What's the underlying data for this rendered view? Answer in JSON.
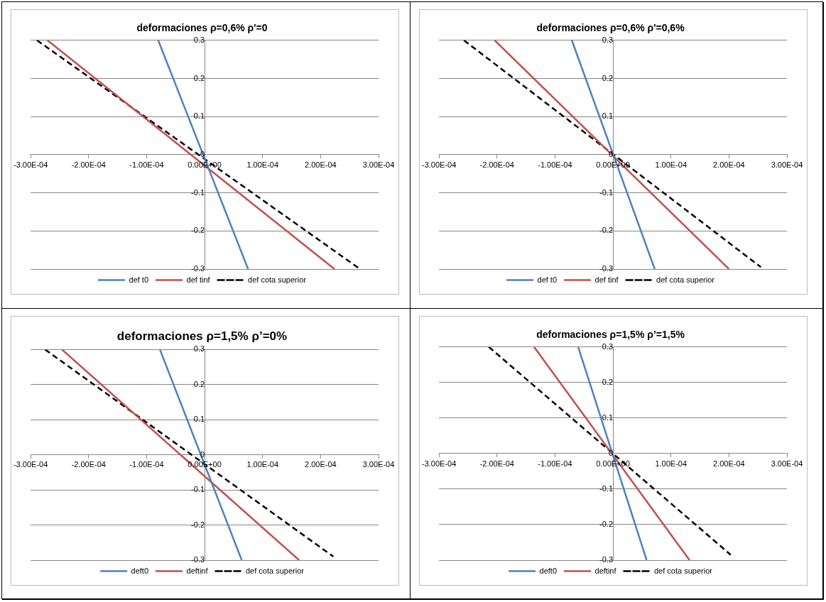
{
  "chart_data": [
    {
      "type": "line",
      "title": "deformaciones ρ=0,6% ρ'=0",
      "marker": "none",
      "grid": "y",
      "legend": "bottom",
      "xlim": [
        -0.0003,
        0.0003
      ],
      "ylim": [
        -0.3,
        0.3
      ],
      "xticks": [
        {
          "value": -0.0003,
          "label": "-3.00E-04"
        },
        {
          "value": -0.0002,
          "label": "-2.00E-04"
        },
        {
          "value": -0.0001,
          "label": "-1.00E-04"
        },
        {
          "value": 0,
          "label": "0.00E+00"
        },
        {
          "value": 0.0001,
          "label": "1.00E-04"
        },
        {
          "value": 0.0002,
          "label": "2.00E-04"
        },
        {
          "value": 0.0003,
          "label": "3.00E-04"
        }
      ],
      "yticks": [
        -0.3,
        -0.2,
        -0.1,
        0,
        0.1,
        0.2,
        0.3
      ],
      "series": [
        {
          "name": "def t0",
          "color": "#4f81bd",
          "line_style": "solid",
          "x": [
            -8e-05,
            7.5e-05
          ],
          "values": [
            0.3,
            -0.3
          ]
        },
        {
          "name": "def tinf",
          "color": "#c0504d",
          "line_style": "solid",
          "x": [
            -0.000271,
            0.000224
          ],
          "values": [
            0.3,
            -0.3
          ]
        },
        {
          "name": "def cota superior",
          "color": "#000000",
          "line_style": "dashed",
          "x": [
            -0.000289,
            0.000268
          ],
          "values": [
            0.3,
            -0.3
          ]
        }
      ]
    },
    {
      "type": "line",
      "title": "deformaciones ρ=0,6% ρ'=0,6%",
      "marker": "none",
      "grid": "y",
      "legend": "bottom",
      "xlim": [
        -0.0003,
        0.0003
      ],
      "ylim": [
        -0.3,
        0.3
      ],
      "xticks": [
        {
          "value": -0.0003,
          "label": "-3.00E-04"
        },
        {
          "value": -0.0002,
          "label": "-2.00E-04"
        },
        {
          "value": -0.0001,
          "label": "-1.00E-04"
        },
        {
          "value": 0,
          "label": "0.00E+00"
        },
        {
          "value": 0.0001,
          "label": "1.00E-04"
        },
        {
          "value": 0.0002,
          "label": "2.00E-04"
        },
        {
          "value": 0.0003,
          "label": "3.00E-04"
        }
      ],
      "yticks": [
        -0.3,
        -0.2,
        -0.1,
        0,
        0.1,
        0.2,
        0.3
      ],
      "series": [
        {
          "name": "def t0",
          "color": "#4f81bd",
          "line_style": "solid",
          "x": [
            -7.1e-05,
            7.2e-05
          ],
          "values": [
            0.3,
            -0.3
          ]
        },
        {
          "name": "def tinf",
          "color": "#c0504d",
          "line_style": "solid",
          "x": [
            -0.000204,
            0.0002
          ],
          "values": [
            0.3,
            -0.3
          ]
        },
        {
          "name": "def cota superior",
          "color": "#000000",
          "line_style": "dashed",
          "x": [
            -0.000257,
            0.000255
          ],
          "values": [
            0.3,
            -0.295
          ]
        }
      ]
    },
    {
      "type": "line",
      "title": "deformaciones ρ=1,5% ρ’=0%",
      "marker": "none",
      "grid": "y",
      "legend": "bottom",
      "xlim": [
        -0.0003,
        0.0003
      ],
      "ylim": [
        -0.3,
        0.3
      ],
      "xticks": [
        {
          "value": -0.0003,
          "label": "-3.00E-04"
        },
        {
          "value": -0.0002,
          "label": "-2.00E-04"
        },
        {
          "value": -0.0001,
          "label": "-1.00E-04"
        },
        {
          "value": 0,
          "label": "0.00E+00"
        },
        {
          "value": 0.0001,
          "label": "1.00E-04"
        },
        {
          "value": 0.0002,
          "label": "2.00E-04"
        },
        {
          "value": 0.0003,
          "label": "3.00E-04"
        }
      ],
      "yticks": [
        -0.3,
        -0.2,
        -0.1,
        0,
        0.1,
        0.2,
        0.3
      ],
      "series": [
        {
          "name": "deft0",
          "color": "#4f81bd",
          "line_style": "solid",
          "x": [
            -7.7e-05,
            6.4e-05
          ],
          "values": [
            0.3,
            -0.3
          ]
        },
        {
          "name": "deftinf",
          "color": "#c0504d",
          "line_style": "solid",
          "x": [
            -0.000246,
            0.000163
          ],
          "values": [
            0.3,
            -0.3
          ]
        },
        {
          "name": "def cota superior",
          "color": "#000000",
          "line_style": "dashed",
          "x": [
            -0.000275,
            0.000222
          ],
          "values": [
            0.3,
            -0.29
          ]
        }
      ]
    },
    {
      "type": "line",
      "title": "deformaciones ρ=1,5% ρ’=1,5%",
      "marker": "none",
      "grid": "y",
      "legend": "bottom",
      "xlim": [
        -0.0003,
        0.0003
      ],
      "ylim": [
        -0.3,
        0.3
      ],
      "xticks": [
        {
          "value": -0.0003,
          "label": "-3.00E-04"
        },
        {
          "value": -0.0002,
          "label": "-2.00E-04"
        },
        {
          "value": -0.0001,
          "label": "-1.00E-04"
        },
        {
          "value": 0,
          "label": "0.00E+00"
        },
        {
          "value": 0.0001,
          "label": "1.00E-04"
        },
        {
          "value": 0.0002,
          "label": "2.00E-04"
        },
        {
          "value": 0.0003,
          "label": "3.00E-04"
        }
      ],
      "yticks": [
        -0.3,
        -0.2,
        -0.1,
        0,
        0.1,
        0.2,
        0.3
      ],
      "series": [
        {
          "name": "deft0",
          "color": "#4f81bd",
          "line_style": "solid",
          "x": [
            -6e-05,
            5.8e-05
          ],
          "values": [
            0.3,
            -0.3
          ]
        },
        {
          "name": "deftinf",
          "color": "#c0504d",
          "line_style": "solid",
          "x": [
            -0.000136,
            0.000132
          ],
          "values": [
            0.3,
            -0.3
          ]
        },
        {
          "name": "def cota superior",
          "color": "#000000",
          "line_style": "dashed",
          "x": [
            -0.000214,
            0.000203
          ],
          "values": [
            0.3,
            -0.285
          ]
        }
      ]
    }
  ]
}
